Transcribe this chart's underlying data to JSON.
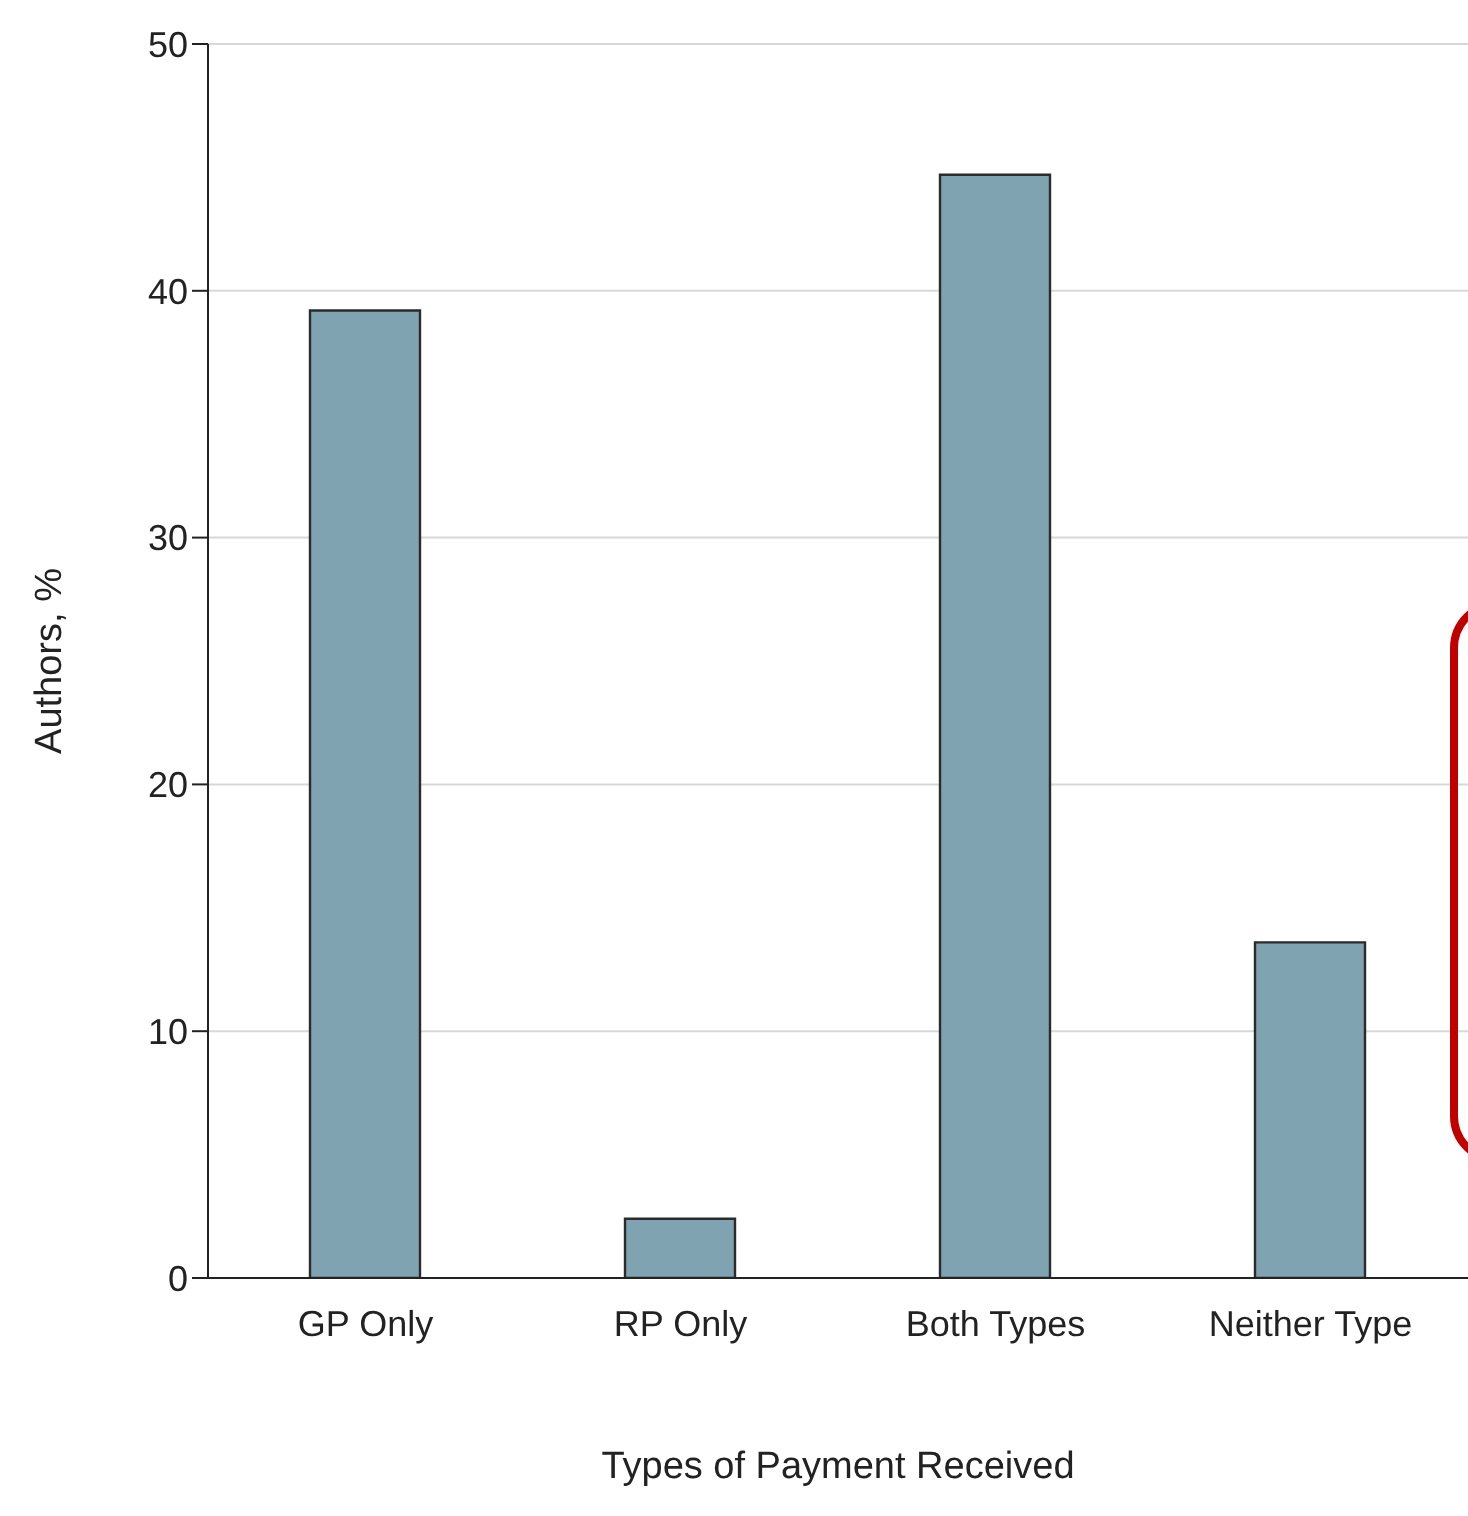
{
  "chart_data": {
    "type": "bar",
    "xlabel": "Types of Payment Received",
    "ylabel": "Authors, %",
    "categories": [
      "GP Only",
      "RP Only",
      "Both Types",
      "Neither Type"
    ],
    "values": [
      39.2,
      2.4,
      44.7,
      13.6
    ],
    "color": "#7fa3b0",
    "ylim": [
      0,
      50
    ],
    "yticks": [
      0,
      10,
      20,
      30,
      40,
      50
    ],
    "grid": "y"
  }
}
